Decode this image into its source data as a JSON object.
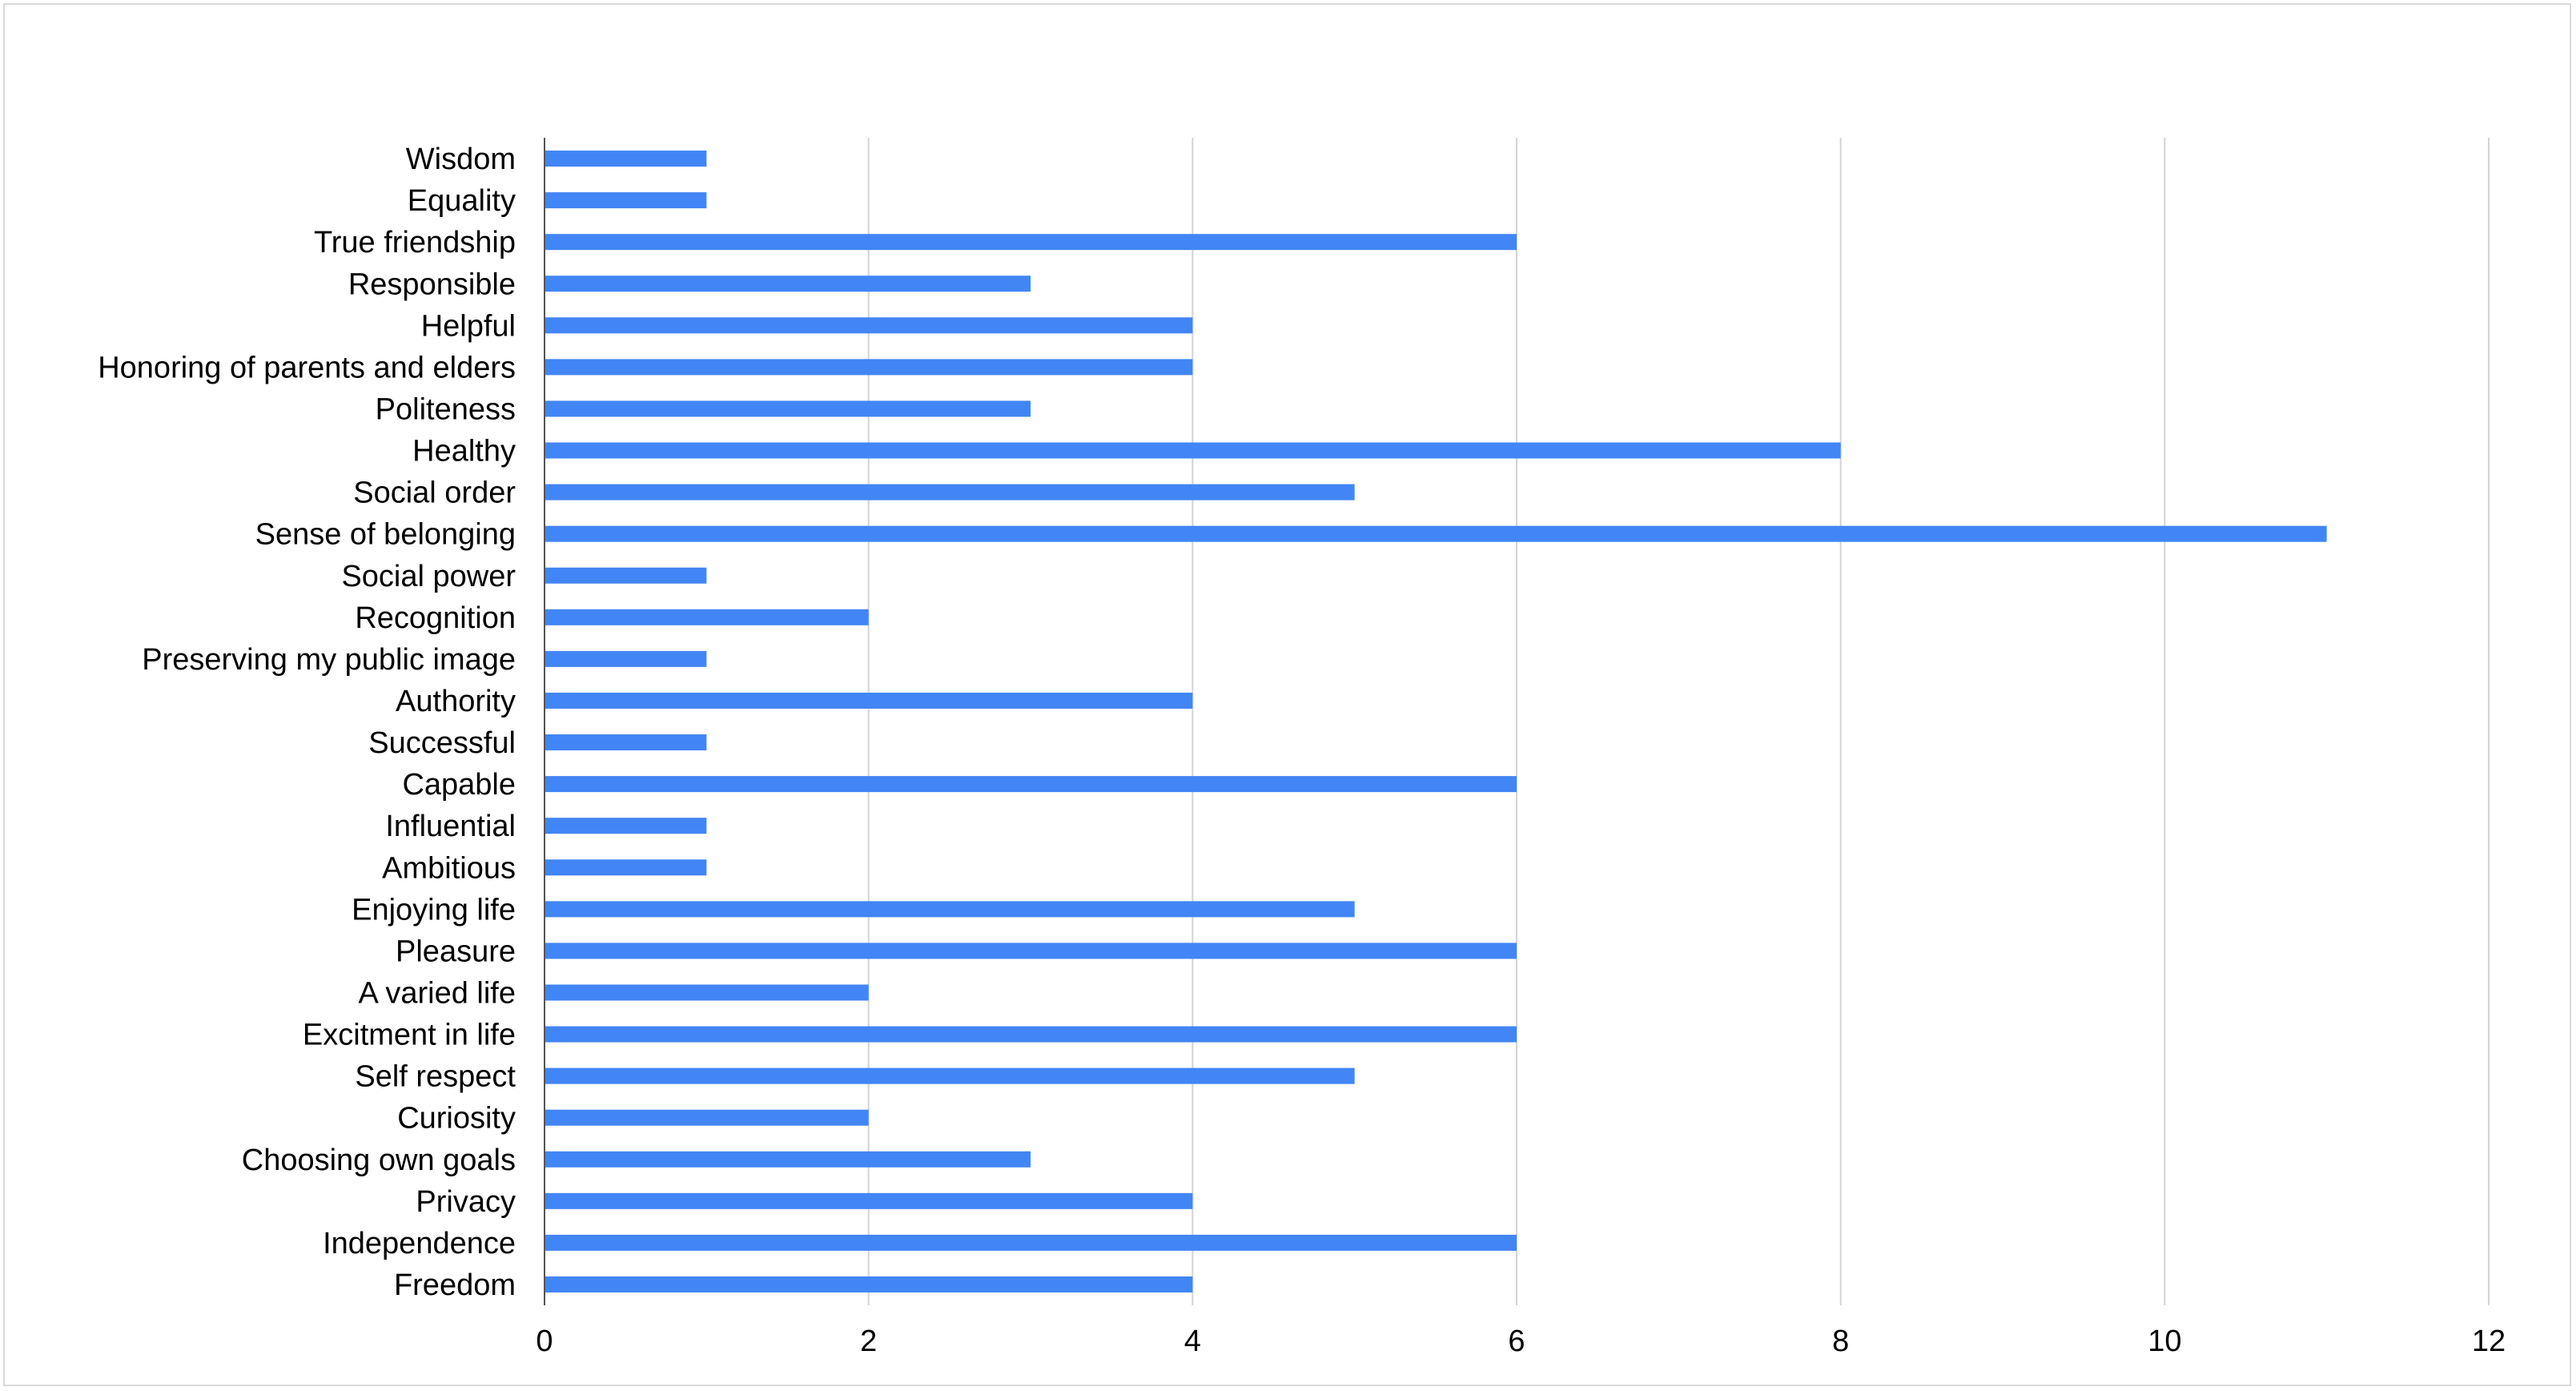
{
  "chart_data": {
    "type": "bar",
    "orientation": "horizontal",
    "title": "",
    "xlabel": "",
    "ylabel": "",
    "xlim": [
      0,
      12
    ],
    "x_ticks": [
      0,
      2,
      4,
      6,
      8,
      10,
      12
    ],
    "grid": "vertical",
    "legend": "none",
    "bar_color": "#4285f4",
    "categories": [
      "Wisdom",
      "Equality",
      "True friendship",
      "Responsible",
      "Helpful",
      "Honoring of parents and elders",
      "Politeness",
      "Healthy",
      "Social order",
      "Sense of belonging",
      "Social power",
      "Recognition",
      "Preserving my public image",
      "Authority",
      "Successful",
      "Capable",
      "Influential",
      "Ambitious",
      "Enjoying life",
      "Pleasure",
      "A varied life",
      "Excitment in life",
      "Self respect",
      "Curiosity",
      "Choosing own goals",
      "Privacy",
      "Independence",
      "Freedom"
    ],
    "values": [
      1,
      1,
      6,
      3,
      4,
      4,
      3,
      8,
      5,
      11,
      1,
      2,
      1,
      4,
      1,
      6,
      1,
      1,
      5,
      6,
      2,
      6,
      5,
      2,
      3,
      4,
      6,
      4
    ]
  }
}
